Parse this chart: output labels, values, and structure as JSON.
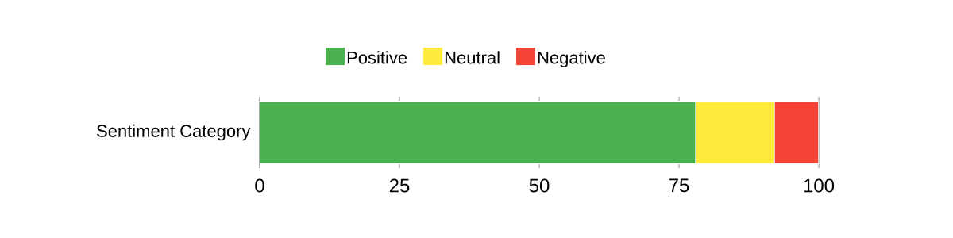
{
  "chart_data": {
    "type": "bar",
    "orientation": "horizontal",
    "stacked": true,
    "categories": [
      "Sentiment Category"
    ],
    "series": [
      {
        "name": "Positive",
        "color": "#4caf50",
        "values": [
          78
        ]
      },
      {
        "name": "Neutral",
        "color": "#ffeb3b",
        "values": [
          14
        ]
      },
      {
        "name": "Negative",
        "color": "#f44336",
        "values": [
          8
        ]
      }
    ],
    "xlim": [
      0,
      100
    ],
    "xticks": [
      0,
      25,
      50,
      75,
      100
    ],
    "grid": "x",
    "legend": "top"
  }
}
